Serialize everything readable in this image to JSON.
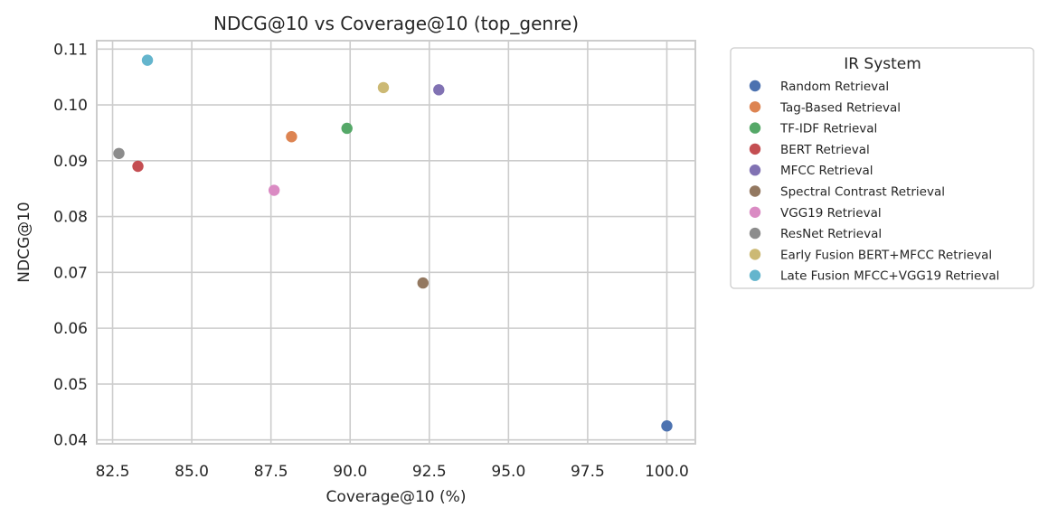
{
  "chart_data": {
    "type": "scatter",
    "title": "NDCG@10 vs Coverage@10 (top_genre)",
    "xlabel": "Coverage@10 (%)",
    "ylabel": "NDCG@10",
    "xlim": [
      82.0,
      100.9
    ],
    "ylim": [
      0.0393,
      0.1115
    ],
    "xticks": [
      82.5,
      85.0,
      87.5,
      90.0,
      92.5,
      95.0,
      97.5,
      100.0
    ],
    "yticks": [
      0.04,
      0.05,
      0.06,
      0.07,
      0.08,
      0.09,
      0.1,
      0.11
    ],
    "xtick_labels": [
      "82.5",
      "85.0",
      "87.5",
      "90.0",
      "92.5",
      "95.0",
      "97.5",
      "100.0"
    ],
    "ytick_labels": [
      "0.04",
      "0.05",
      "0.06",
      "0.07",
      "0.08",
      "0.09",
      "0.10",
      "0.11"
    ],
    "grid": true,
    "legend": {
      "title": "IR System",
      "placement": "outside-right"
    },
    "series": [
      {
        "name": "Random Retrieval",
        "color": "#4c72b0",
        "x": 100.0,
        "y": 0.0425
      },
      {
        "name": "Tag-Based Retrieval",
        "color": "#dd8452",
        "x": 88.15,
        "y": 0.0943
      },
      {
        "name": "TF-IDF Retrieval",
        "color": "#55a868",
        "x": 89.9,
        "y": 0.0958
      },
      {
        "name": "BERT Retrieval",
        "color": "#c44e52",
        "x": 83.3,
        "y": 0.089
      },
      {
        "name": "MFCC Retrieval",
        "color": "#8172b3",
        "x": 92.8,
        "y": 0.1027
      },
      {
        "name": "Spectral Contrast Retrieval",
        "color": "#937860",
        "x": 92.3,
        "y": 0.0681
      },
      {
        "name": "VGG19 Retrieval",
        "color": "#da8bc3",
        "x": 87.6,
        "y": 0.0847
      },
      {
        "name": "ResNet Retrieval",
        "color": "#8c8c8c",
        "x": 82.7,
        "y": 0.0913
      },
      {
        "name": "Early Fusion BERT+MFCC Retrieval",
        "color": "#ccb974",
        "x": 91.05,
        "y": 0.1031
      },
      {
        "name": "Late Fusion MFCC+VGG19 Retrieval",
        "color": "#64b5cd",
        "x": 83.6,
        "y": 0.108
      }
    ]
  }
}
